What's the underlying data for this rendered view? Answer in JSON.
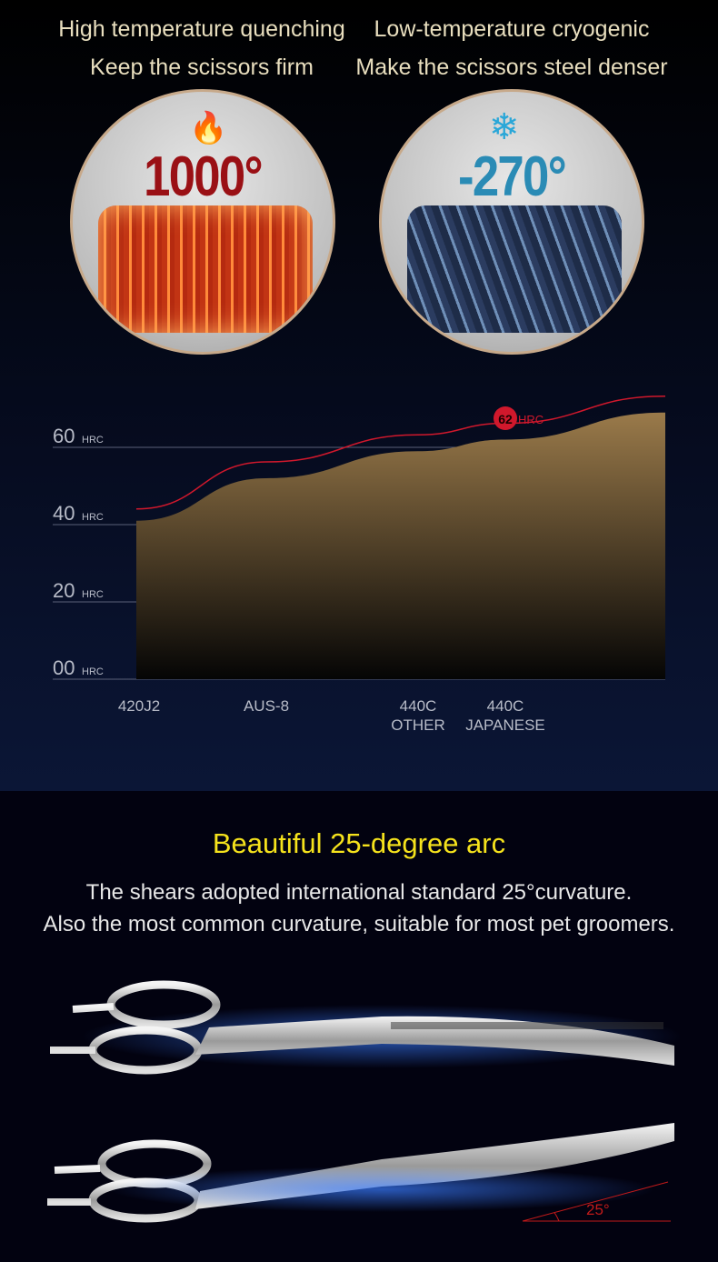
{
  "left_panel": {
    "title": "High temperature quenching",
    "subtitle": "Keep the scissors firm",
    "temperature": "1000°",
    "icon": "fire-icon"
  },
  "right_panel": {
    "title": "Low-temperature cryogenic",
    "subtitle": "Make the scissors steel denser",
    "temperature": "-270°",
    "icon": "snowflake-icon"
  },
  "chart_data": {
    "type": "area",
    "categories": [
      "420J2",
      "AUS-8",
      "440C\nOTHER",
      "440C\nJAPANESE"
    ],
    "category_lines": [
      [
        "420J2"
      ],
      [
        "AUS-8"
      ],
      [
        "440C",
        "OTHER"
      ],
      [
        "440C",
        "JAPANESE"
      ]
    ],
    "values": [
      41,
      52,
      59,
      62
    ],
    "end_value": 69,
    "y_ticks": [
      "00",
      "20",
      "40",
      "60"
    ],
    "y_unit": "HRC",
    "ylim": [
      0,
      70
    ],
    "highlight": {
      "value": "62",
      "unit": "HRC",
      "category": "440C JAPANESE"
    },
    "grid": true,
    "colors": {
      "area_top": "#9a7a4a",
      "area_bottom": "#050505",
      "line": "#d0182c"
    }
  },
  "arc_section": {
    "title": "Beautiful 25-degree arc",
    "line1": "The shears adopted international standard 25°curvature.",
    "line2": "Also the most common curvature, suitable for most pet groomers.",
    "angle_label": "25°"
  }
}
